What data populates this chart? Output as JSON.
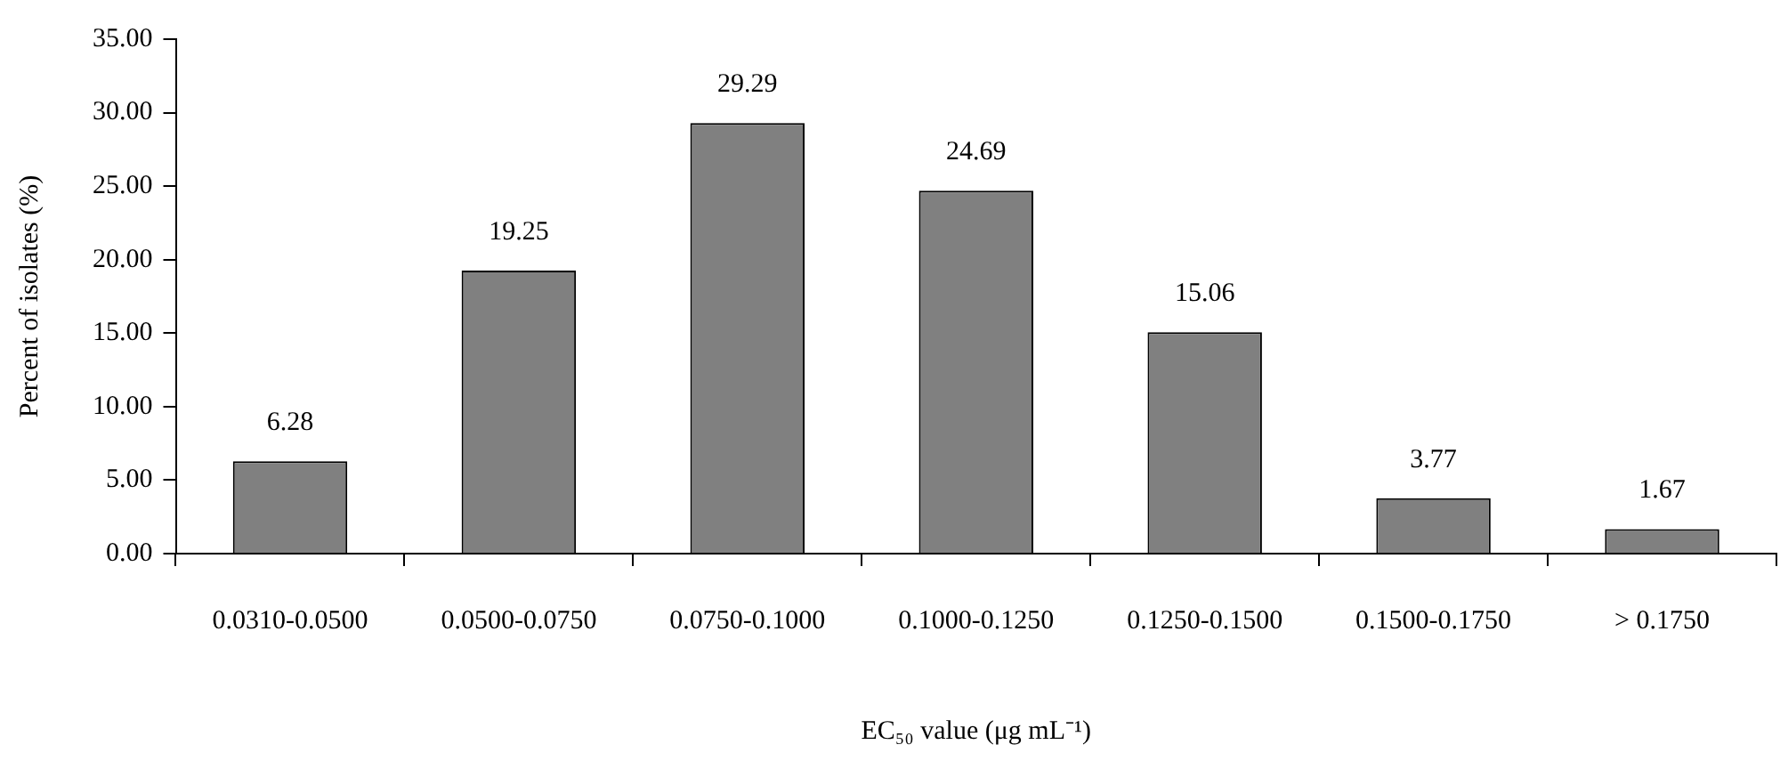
{
  "chart_data": {
    "type": "bar",
    "xlabel": "EC₅₀ value (μg mL⁻¹)",
    "ylabel": "Percent of isolates (%)",
    "categories": [
      "0.0310-0.0500",
      "0.0500-0.0750",
      "0.0750-0.1000",
      "0.1000-0.1250",
      "0.1250-0.1500",
      "0.1500-0.1750",
      "> 0.1750"
    ],
    "values": [
      6.28,
      19.25,
      29.29,
      24.69,
      15.06,
      3.77,
      1.67
    ],
    "color": "#808080",
    "ylim": [
      0,
      35
    ],
    "yticks": [
      {
        "value": 0,
        "label": "0.00"
      },
      {
        "value": 5,
        "label": "5.00"
      },
      {
        "value": 10,
        "label": "10.00"
      },
      {
        "value": 15,
        "label": "15.00"
      },
      {
        "value": 20,
        "label": "20.00"
      },
      {
        "value": 25,
        "label": "25.00"
      },
      {
        "value": 30,
        "label": "30.00"
      },
      {
        "value": 35,
        "label": "35.00"
      }
    ],
    "data_labels": true,
    "grid": false,
    "legend": false
  }
}
